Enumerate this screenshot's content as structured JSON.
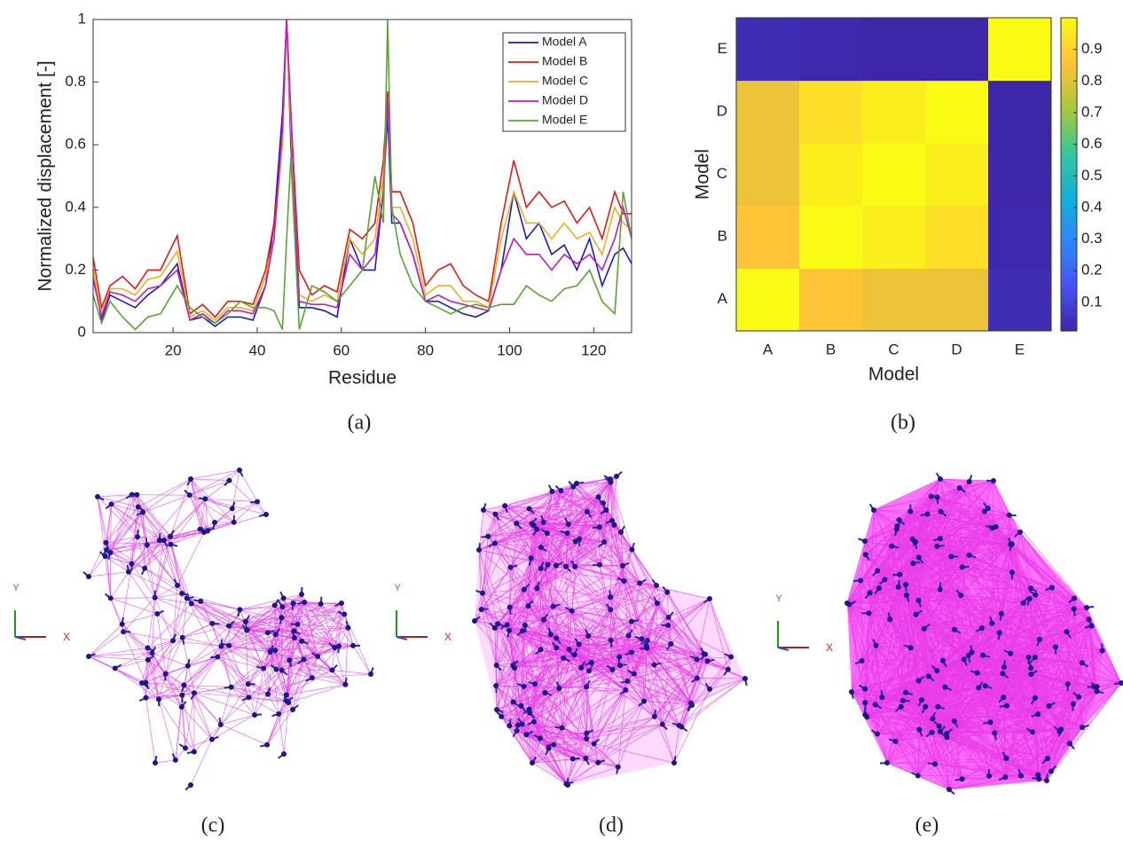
{
  "chart_data": [
    {
      "type": "line",
      "caption": "(a)",
      "x_label": "Residue",
      "y_label": "Normalized displacement [-]",
      "x": [
        1,
        3,
        5,
        8,
        11,
        14,
        17,
        21,
        24,
        27,
        30,
        33,
        36,
        39,
        42,
        44,
        46,
        47,
        48,
        50,
        53,
        56,
        59,
        62,
        65,
        68,
        70,
        71,
        72,
        74,
        77,
        80,
        83,
        86,
        89,
        92,
        95,
        98,
        101,
        104,
        107,
        110,
        113,
        116,
        119,
        122,
        125,
        127,
        129
      ],
      "xlim": [
        1,
        129
      ],
      "xticks": [
        20,
        40,
        60,
        80,
        100,
        120
      ],
      "ylim": [
        0,
        1
      ],
      "yticks": [
        0,
        0.2,
        0.4,
        0.6,
        0.8,
        1
      ],
      "legend": "upper right",
      "series": [
        {
          "name": "Model A",
          "color": "#1a1ac4",
          "values": [
            0.2,
            0.04,
            0.12,
            0.1,
            0.08,
            0.12,
            0.15,
            0.22,
            0.04,
            0.05,
            0.02,
            0.05,
            0.05,
            0.04,
            0.15,
            0.35,
            0.7,
            1.0,
            0.6,
            0.08,
            0.08,
            0.07,
            0.05,
            0.3,
            0.2,
            0.2,
            0.45,
            0.7,
            0.35,
            0.35,
            0.25,
            0.1,
            0.1,
            0.08,
            0.06,
            0.05,
            0.07,
            0.2,
            0.45,
            0.3,
            0.35,
            0.25,
            0.28,
            0.2,
            0.3,
            0.15,
            0.25,
            0.27,
            0.22
          ]
        },
        {
          "name": "Model B",
          "color": "#e51b12",
          "values": [
            0.24,
            0.08,
            0.15,
            0.18,
            0.14,
            0.2,
            0.2,
            0.31,
            0.06,
            0.09,
            0.05,
            0.1,
            0.1,
            0.09,
            0.2,
            0.35,
            0.6,
            1.0,
            0.7,
            0.2,
            0.12,
            0.15,
            0.13,
            0.33,
            0.3,
            0.35,
            0.55,
            0.77,
            0.45,
            0.45,
            0.35,
            0.15,
            0.2,
            0.22,
            0.15,
            0.12,
            0.1,
            0.35,
            0.55,
            0.4,
            0.45,
            0.4,
            0.42,
            0.35,
            0.4,
            0.3,
            0.45,
            0.38,
            0.38
          ]
        },
        {
          "name": "Model C",
          "color": "#edb120",
          "values": [
            0.2,
            0.06,
            0.14,
            0.14,
            0.12,
            0.17,
            0.18,
            0.26,
            0.05,
            0.07,
            0.04,
            0.08,
            0.08,
            0.07,
            0.18,
            0.3,
            0.6,
            0.98,
            0.65,
            0.12,
            0.1,
            0.12,
            0.1,
            0.3,
            0.25,
            0.3,
            0.5,
            0.74,
            0.4,
            0.4,
            0.3,
            0.12,
            0.15,
            0.15,
            0.1,
            0.1,
            0.08,
            0.3,
            0.45,
            0.35,
            0.35,
            0.3,
            0.35,
            0.3,
            0.32,
            0.25,
            0.4,
            0.35,
            0.33
          ]
        },
        {
          "name": "Model D",
          "color": "#c21cc2",
          "values": [
            0.17,
            0.05,
            0.13,
            0.12,
            0.1,
            0.14,
            0.15,
            0.2,
            0.04,
            0.06,
            0.03,
            0.07,
            0.07,
            0.06,
            0.15,
            0.3,
            0.65,
            1.0,
            0.7,
            0.1,
            0.09,
            0.09,
            0.08,
            0.25,
            0.2,
            0.25,
            0.45,
            0.75,
            0.38,
            0.35,
            0.25,
            0.1,
            0.12,
            0.1,
            0.09,
            0.08,
            0.07,
            0.2,
            0.3,
            0.25,
            0.25,
            0.2,
            0.25,
            0.22,
            0.25,
            0.2,
            0.3,
            0.4,
            0.3
          ]
        },
        {
          "name": "Model E",
          "color": "#5aa532",
          "values": [
            0.12,
            0.03,
            0.1,
            0.05,
            0.01,
            0.05,
            0.06,
            0.15,
            0.08,
            0.05,
            0.03,
            0.06,
            0.1,
            0.08,
            0.08,
            0.07,
            0.01,
            0.3,
            0.56,
            0.01,
            0.15,
            0.13,
            0.1,
            0.15,
            0.2,
            0.5,
            0.35,
            1.0,
            0.4,
            0.25,
            0.15,
            0.1,
            0.08,
            0.06,
            0.08,
            0.09,
            0.08,
            0.09,
            0.09,
            0.15,
            0.12,
            0.1,
            0.14,
            0.15,
            0.2,
            0.1,
            0.06,
            0.45,
            0.3
          ]
        }
      ]
    },
    {
      "type": "heatmap",
      "caption": "(b)",
      "x_label": "Model",
      "y_label": "Model",
      "categories": [
        "A",
        "B",
        "C",
        "D",
        "E"
      ],
      "values": [
        [
          1,
          0.86,
          0.83,
          0.83,
          0.03
        ],
        [
          0.86,
          1,
          0.97,
          0.93,
          0.02
        ],
        [
          0.83,
          0.97,
          1,
          0.97,
          0.01
        ],
        [
          0.83,
          0.93,
          0.97,
          1,
          0.01
        ],
        [
          0.03,
          0.02,
          0.01,
          0.01,
          1
        ]
      ],
      "colormap": "parula",
      "clim": [
        0.01,
        1
      ],
      "cticks": [
        0.1,
        0.2,
        0.3,
        0.4,
        0.5,
        0.6,
        0.7,
        0.8,
        0.9
      ]
    }
  ],
  "figures": [
    {
      "caption": "(c)",
      "axis_labels": {
        "y": "Y",
        "x": "X"
      }
    },
    {
      "caption": "(d)",
      "axis_labels": {
        "y": "Y",
        "x": "X"
      }
    },
    {
      "caption": "(e)",
      "axis_labels": {
        "y": "Y",
        "x": "X"
      }
    }
  ]
}
